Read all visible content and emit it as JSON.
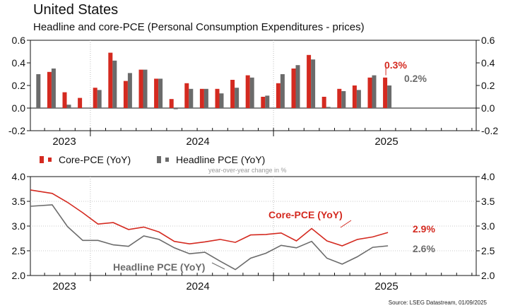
{
  "title": "United States",
  "subtitle": "Headline and core-PCE (Personal Consumption Expenditures - prices)",
  "colors": {
    "core": "#d42a20",
    "headline": "#6b6b6b"
  },
  "legend": {
    "core": "Core-PCE (YoY)",
    "headline": "Headline PCE (YoY)"
  },
  "note": "year-over-year change in %",
  "source": "Source: LSEG Datastream, 01/09/2025",
  "chart_data": [
    {
      "type": "bar",
      "x_labels": [
        "2023",
        "2024",
        "2025"
      ],
      "ylim": [
        -0.2,
        0.6
      ],
      "yticks": [
        "-0.2",
        "0.0",
        "0.2",
        "0.4",
        "0.6"
      ],
      "grid": "vertical-dotted",
      "series": [
        {
          "name": "Core-PCE (YoY)",
          "values": [
            null,
            0.32,
            0.14,
            0.09,
            0.18,
            0.49,
            0.24,
            0.34,
            0.26,
            0.08,
            0.22,
            0.17,
            0.17,
            0.25,
            0.29,
            0.1,
            0.22,
            0.35,
            0.47,
            0.1,
            0.17,
            0.2,
            0.27,
            0.27
          ]
        },
        {
          "name": "Headline PCE (YoY)",
          "values": [
            0.3,
            0.35,
            0.03,
            0.0,
            0.16,
            0.42,
            0.31,
            0.34,
            0.26,
            -0.01,
            0.17,
            0.17,
            0.13,
            0.18,
            0.27,
            0.11,
            0.3,
            0.38,
            0.43,
            0.01,
            0.15,
            0.16,
            0.29,
            0.2
          ]
        }
      ],
      "annotations": [
        {
          "series": "Core-PCE (YoY)",
          "text": "0.3%"
        },
        {
          "series": "Headline PCE (YoY)",
          "text": "0.2%"
        }
      ]
    },
    {
      "type": "line",
      "x_labels": [
        "2023",
        "2024",
        "2025"
      ],
      "ylim": [
        2.0,
        4.0
      ],
      "yticks": [
        "2.0",
        "2.5",
        "3.0",
        "3.5",
        "4.0"
      ],
      "grid": "dotted",
      "series": [
        {
          "name": "Core-PCE (YoY)",
          "values": [
            3.73,
            3.66,
            3.48,
            3.27,
            3.04,
            3.07,
            2.93,
            2.98,
            2.88,
            2.69,
            2.64,
            2.68,
            2.73,
            2.67,
            2.82,
            2.83,
            2.86,
            2.7,
            2.95,
            2.7,
            2.6,
            2.73,
            2.78,
            2.87
          ]
        },
        {
          "name": "Headline PCE (YoY)",
          "values": [
            3.4,
            3.43,
            2.99,
            2.71,
            2.71,
            2.62,
            2.59,
            2.8,
            2.73,
            2.56,
            2.44,
            2.47,
            2.29,
            2.12,
            2.35,
            2.45,
            2.61,
            2.56,
            2.69,
            2.35,
            2.23,
            2.38,
            2.57,
            2.6
          ]
        }
      ],
      "annotations": [
        {
          "series": "Core-PCE (YoY)",
          "text": "Core-PCE (YoY)"
        },
        {
          "series": "Headline PCE (YoY)",
          "text": "Headline PCE (YoY)"
        },
        {
          "series": "Core-PCE (YoY)",
          "text": "2.9%"
        },
        {
          "series": "Headline PCE (YoY)",
          "text": "2.6%"
        }
      ]
    }
  ]
}
